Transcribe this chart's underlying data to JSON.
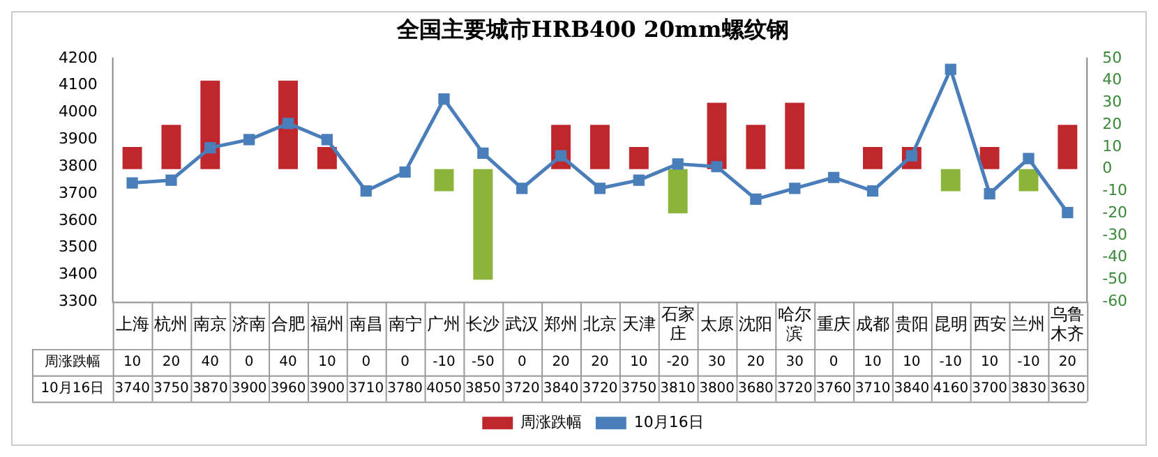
{
  "chart_data": {
    "type": "bar",
    "title": "全国主要城市HRB400 20mm螺纹钢",
    "categories": [
      "上海",
      "杭州",
      "南京",
      "济南",
      "合肥",
      "福州",
      "南昌",
      "南宁",
      "广州",
      "长沙",
      "武汉",
      "郑州",
      "北京",
      "天津",
      "石家庄",
      "太原",
      "沈阳",
      "哈尔滨",
      "重庆",
      "成都",
      "贵阳",
      "昆明",
      "西安",
      "兰州",
      "乌鲁木齐"
    ],
    "series": [
      {
        "name": "周涨跌幅",
        "axis": "y2",
        "color": "#c0272d",
        "colors": [
          "#c0272d",
          "#c0272d",
          "#c0272d",
          "#c0272d",
          "#c0272d",
          "#c0272d",
          "#c0272d",
          "#c0272d",
          "#8ab43a",
          "#8ab43a",
          "#c0272d",
          "#c0272d",
          "#c0272d",
          "#c0272d",
          "#8ab43a",
          "#c0272d",
          "#c0272d",
          "#c0272d",
          "#c0272d",
          "#c0272d",
          "#c0272d",
          "#8ab43a",
          "#c0272d",
          "#8ab43a",
          "#c0272d"
        ],
        "values": [
          10,
          20,
          40,
          0,
          40,
          10,
          0,
          0,
          -10,
          -50,
          0,
          20,
          20,
          10,
          -20,
          30,
          20,
          30,
          0,
          10,
          10,
          -10,
          10,
          -10,
          20
        ]
      },
      {
        "name": "10月16日",
        "type": "line",
        "color": "#4a7ebb",
        "marker": "square",
        "values": [
          3740,
          3750,
          3870,
          3900,
          3960,
          3900,
          3710,
          3780,
          4050,
          3850,
          3720,
          3840,
          3720,
          3750,
          3810,
          3800,
          3680,
          3720,
          3760,
          3710,
          3840,
          4160,
          3700,
          3830,
          3630
        ]
      }
    ],
    "ylim": [
      3300,
      4200
    ],
    "yticks": [
      3300,
      3400,
      3500,
      3600,
      3700,
      3800,
      3900,
      4000,
      4100,
      4200
    ],
    "y2lim": [
      -60,
      50
    ],
    "y2ticks": [
      -60,
      -50,
      -40,
      -30,
      -20,
      -10,
      0,
      10,
      20,
      30,
      40,
      50
    ],
    "grid": false,
    "legend": "bottom",
    "data_labels": true
  }
}
